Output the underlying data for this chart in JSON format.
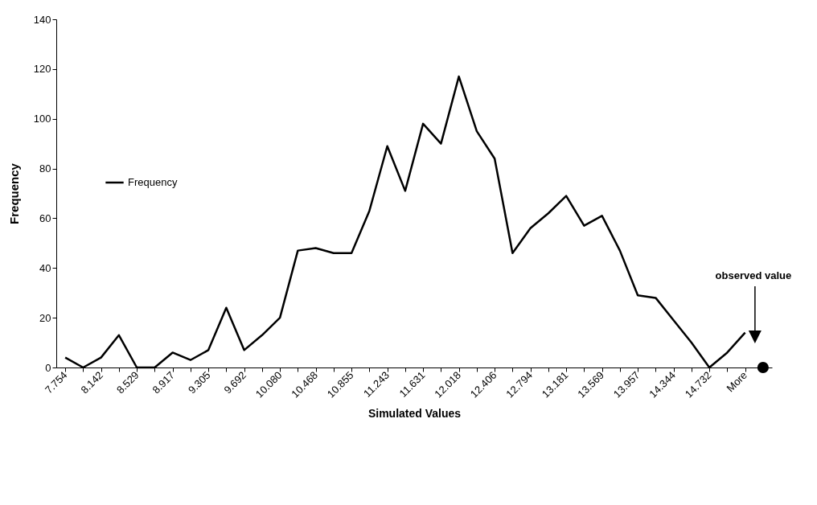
{
  "chart_data": {
    "type": "line",
    "xlabel": "Simulated Values",
    "ylabel": "Frequency",
    "categories": [
      "7.754",
      null,
      "8.142",
      null,
      "8.529",
      null,
      "8.917",
      null,
      "9.305",
      null,
      "9.692",
      null,
      "10.080",
      null,
      "10.468",
      null,
      "10.855",
      null,
      "11.243",
      null,
      "11.631",
      null,
      "12.018",
      null,
      "12.406",
      null,
      "12.794",
      null,
      "13.181",
      null,
      "13.569",
      null,
      "13.957",
      null,
      "14.344",
      null,
      "14.732",
      null,
      "More",
      null
    ],
    "series": [
      {
        "name": "Frequency",
        "color": "#000000",
        "values": [
          4,
          0,
          4,
          13,
          0,
          0,
          6,
          3,
          7,
          24,
          7,
          13,
          20,
          47,
          48,
          46,
          46,
          63,
          89,
          71,
          98,
          90,
          117,
          95,
          84,
          46,
          56,
          62,
          69,
          57,
          61,
          47,
          29,
          28,
          19,
          10,
          0,
          6,
          14,
          null
        ]
      },
      {
        "type": "scatter",
        "marker": "circle",
        "color": "#000000",
        "values": [
          null,
          null,
          null,
          null,
          null,
          null,
          null,
          null,
          null,
          null,
          null,
          null,
          null,
          null,
          null,
          null,
          null,
          null,
          null,
          null,
          null,
          null,
          null,
          null,
          null,
          null,
          null,
          null,
          null,
          null,
          null,
          null,
          null,
          null,
          null,
          null,
          null,
          null,
          null,
          0
        ]
      }
    ],
    "annotations": [
      "observed value"
    ],
    "ylim": [
      0,
      140
    ],
    "yticks": [
      0,
      20,
      40,
      60,
      80,
      100,
      120,
      140
    ],
    "grid": false,
    "legend": "left"
  }
}
